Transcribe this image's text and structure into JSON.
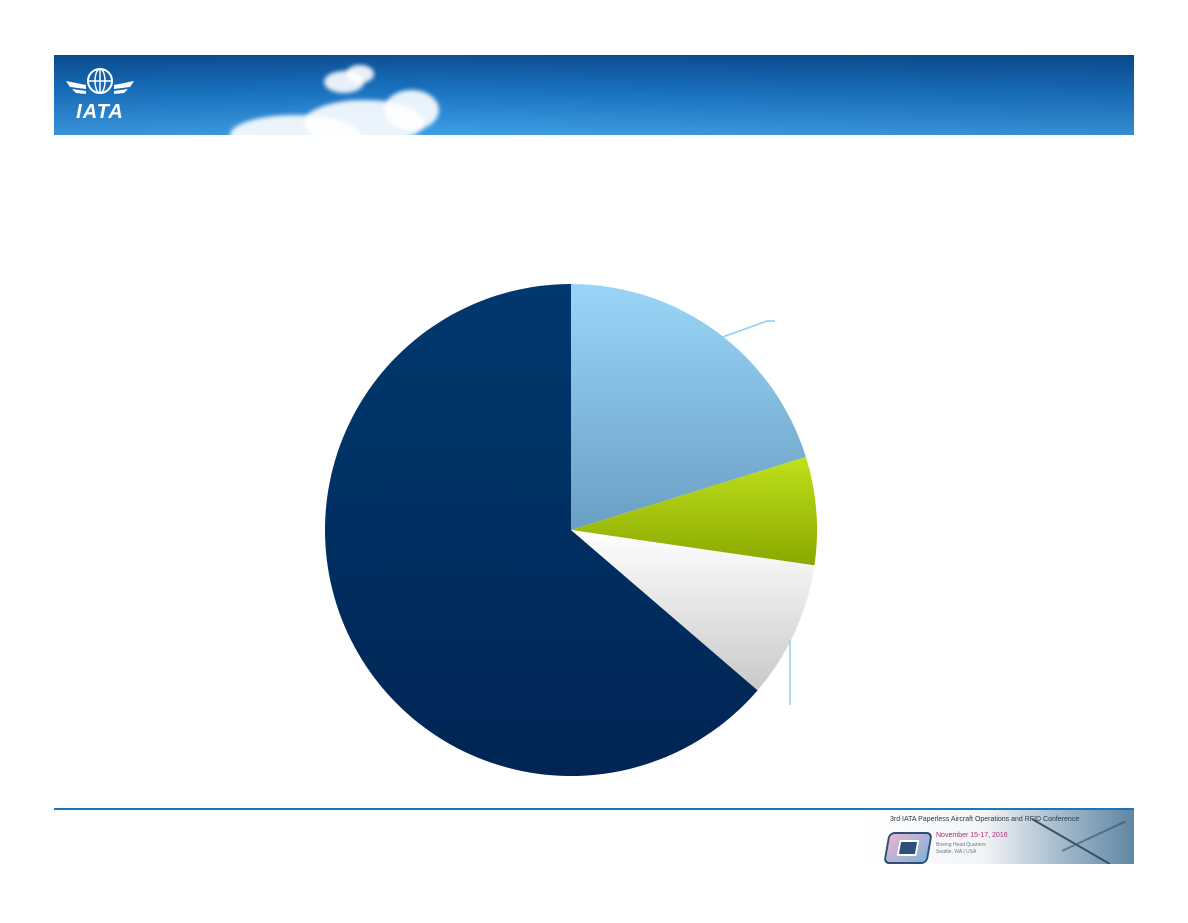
{
  "header": {
    "logo_text": "IATA"
  },
  "chart_data": {
    "type": "pie",
    "start_angle_deg": 0,
    "direction": "clockwise",
    "slices": [
      {
        "value": 20.2,
        "color_top": "#9ad5f7",
        "color_bottom": "#6a9fc4"
      },
      {
        "value": 7.1,
        "color_top": "#bfe11c",
        "color_bottom": "#8aa800"
      },
      {
        "value": 9.0,
        "color_top": "#ffffff",
        "color_bottom": "#c9c9c9"
      },
      {
        "value": 63.7,
        "color_top": "#00396f",
        "color_bottom": "#002554"
      }
    ]
  },
  "footer": {
    "conference_title": "3rd IATA Paperless Aircraft Operations and RFID Conference",
    "conference_dates": "November 15-17, 2016",
    "venue_line1": "Boeing Head Quarters",
    "venue_line2": "Seattle, WA | USA",
    "rule_color": "#1d75b8"
  }
}
